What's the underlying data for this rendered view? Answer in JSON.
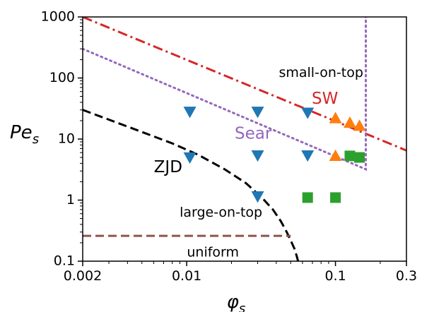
{
  "chart_data": {
    "type": "scatter",
    "x_scale": "log",
    "y_scale": "log",
    "xlim": [
      0.002,
      0.3
    ],
    "ylim": [
      0.1,
      1000
    ],
    "xlabel": "φ",
    "xlabel_sub": "s",
    "ylabel": "Pe",
    "ylabel_sub": "s",
    "grid": false,
    "x_ticks": [
      {
        "value": 0.002,
        "label": "0.002"
      },
      {
        "value": 0.01,
        "label": "0.01"
      },
      {
        "value": 0.1,
        "label": "0.1"
      },
      {
        "value": 0.3,
        "label": "0.3"
      }
    ],
    "y_ticks": [
      {
        "value": 0.1,
        "label": "0.1"
      },
      {
        "value": 1,
        "label": "1"
      },
      {
        "value": 10,
        "label": "10"
      },
      {
        "value": 100,
        "label": "100"
      },
      {
        "value": 1000,
        "label": "1000"
      }
    ],
    "lines": [
      {
        "name": "SW",
        "color": "#d62728",
        "style": "dashdot",
        "x": [
          0.002,
          0.3
        ],
        "y": [
          1000,
          6.5
        ]
      },
      {
        "name": "Sear",
        "color": "#9467bd",
        "style": "dotted",
        "x": [
          0.002,
          0.16,
          0.16,
          0.16
        ],
        "y": [
          300,
          3.2,
          3.2,
          1000
        ]
      },
      {
        "name": "ZJD",
        "color": "#000000",
        "style": "dashed",
        "x": [
          0.002,
          0.004,
          0.008,
          0.012,
          0.018,
          0.025,
          0.032,
          0.038,
          0.043,
          0.047,
          0.05,
          0.053,
          0.055,
          0.057
        ],
        "y": [
          30,
          16,
          8.5,
          5.5,
          3.2,
          1.9,
          1.1,
          0.7,
          0.45,
          0.3,
          0.22,
          0.16,
          0.12,
          0.085
        ]
      },
      {
        "name": "uniform-boundary",
        "color": "#8c564b",
        "style": "dashed",
        "x": [
          0.002,
          0.05
        ],
        "y": [
          0.26,
          0.26
        ]
      }
    ],
    "series": [
      {
        "marker": "triangle-down",
        "color": "#1f77b4",
        "points": [
          [
            0.0105,
            28
          ],
          [
            0.0105,
            5
          ],
          [
            0.03,
            28
          ],
          [
            0.03,
            5.4
          ],
          [
            0.03,
            1.15
          ],
          [
            0.065,
            27
          ],
          [
            0.065,
            5.4
          ]
        ]
      },
      {
        "marker": "triangle-up",
        "color": "#ff7f0e",
        "points": [
          [
            0.1,
            22
          ],
          [
            0.125,
            18.5
          ],
          [
            0.145,
            16.5
          ],
          [
            0.1,
            5.3
          ]
        ]
      },
      {
        "marker": "square",
        "color": "#2ca02c",
        "points": [
          [
            0.125,
            5.3
          ],
          [
            0.145,
            5.0
          ],
          [
            0.065,
            1.1
          ],
          [
            0.1,
            1.1
          ]
        ]
      }
    ],
    "annotations": [
      {
        "text": "small-on-top",
        "x": 0.08,
        "y": 120,
        "color": "#000000",
        "kind": "region"
      },
      {
        "text": "SW",
        "x": 0.085,
        "y": 45,
        "color": "#d62728",
        "kind": "curve"
      },
      {
        "text": "Sear",
        "x": 0.028,
        "y": 12,
        "color": "#9467bd",
        "kind": "curve"
      },
      {
        "text": "ZJD",
        "x": 0.0075,
        "y": 3.4,
        "color": "#000000",
        "kind": "curve"
      },
      {
        "text": "large-on-top",
        "x": 0.017,
        "y": 0.62,
        "color": "#000000",
        "kind": "region"
      },
      {
        "text": "uniform",
        "x": 0.015,
        "y": 0.138,
        "color": "#000000",
        "kind": "region"
      }
    ]
  }
}
